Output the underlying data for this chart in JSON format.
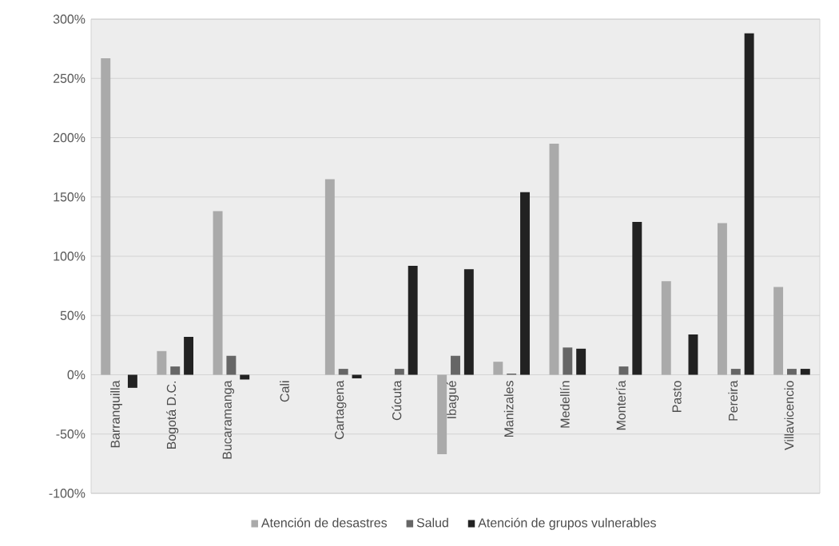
{
  "chart_data": {
    "type": "bar",
    "categories": [
      "Barranquilla",
      "Bogotá D.C.",
      "Bucaramanga",
      "Cali",
      "Cartagena",
      "Cúcuta",
      "Ibagué",
      "Manizales",
      "Medellín",
      "Montería",
      "Pasto",
      "Pereira",
      "Villavicencio"
    ],
    "series": [
      {
        "name": "Atención de desastres",
        "color": "#aaaaaa",
        "values": [
          267,
          20,
          138,
          0,
          165,
          0,
          -67,
          11,
          195,
          0,
          79,
          128,
          74
        ]
      },
      {
        "name": "Salud",
        "color": "#666666",
        "values": [
          0,
          7,
          16,
          0,
          5,
          5,
          16,
          1,
          23,
          7,
          0,
          5,
          5
        ]
      },
      {
        "name": "Atención de grupos vulnerables",
        "color": "#222222",
        "values": [
          -11,
          32,
          -4,
          0,
          -3,
          92,
          89,
          154,
          22,
          129,
          34,
          288,
          5
        ]
      }
    ],
    "ylim": [
      -100,
      300
    ],
    "yticks": [
      {
        "value": -100,
        "label": "-100%"
      },
      {
        "value": -50,
        "label": "-50%"
      },
      {
        "value": 0,
        "label": "0%"
      },
      {
        "value": 50,
        "label": "50%"
      },
      {
        "value": 100,
        "label": "100%"
      },
      {
        "value": 150,
        "label": "150%"
      },
      {
        "value": 200,
        "label": "200%"
      },
      {
        "value": 250,
        "label": "250%"
      },
      {
        "value": 300,
        "label": "300%"
      }
    ],
    "grid": true,
    "legend": "bottom"
  }
}
